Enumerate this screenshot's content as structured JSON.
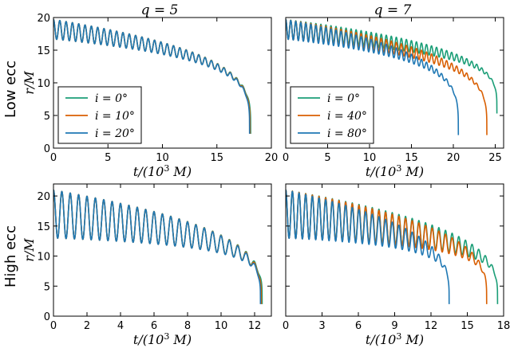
{
  "column_titles": [
    "q = 5",
    "q = 7"
  ],
  "row_labels": [
    "Low ecc",
    "High ecc"
  ],
  "colors": {
    "green": "#1b9e77",
    "orange": "#d95f02",
    "blue": "#1f78b4"
  },
  "chart_data": [
    {
      "type": "line",
      "title": "q = 5",
      "row_label": "Low ecc",
      "xlabel": "t/(10^3 M)",
      "ylabel": "r/M",
      "xlim": [
        0,
        20
      ],
      "ylim": [
        0,
        20
      ],
      "xticks": [
        0,
        5,
        10,
        15,
        20
      ],
      "yticks": [
        0,
        5,
        10,
        15,
        20
      ],
      "show_yticklabels": true,
      "show_xlabel": true,
      "show_ylabel": true,
      "legend": "lower-left",
      "series": [
        {
          "name": "i = 0°",
          "color": "#1b9e77",
          "r0": 18.2,
          "amp": 1.5,
          "t_merge": 18.1,
          "r_end": 2.2,
          "period": 0.58
        },
        {
          "name": "i = 10°",
          "color": "#d95f02",
          "r0": 18.2,
          "amp": 1.5,
          "t_merge": 18.05,
          "r_end": 2.2,
          "period": 0.58
        },
        {
          "name": "i = 20°",
          "color": "#1f78b4",
          "r0": 18.2,
          "amp": 1.5,
          "t_merge": 18.0,
          "r_end": 2.2,
          "period": 0.58
        }
      ]
    },
    {
      "type": "line",
      "title": "q = 7",
      "row_label": "Low ecc",
      "xlabel": "t/(10^3 M)",
      "ylabel": "",
      "xlim": [
        0,
        26
      ],
      "ylim": [
        0,
        20
      ],
      "xticks": [
        0,
        5,
        10,
        15,
        20,
        25
      ],
      "yticks": [
        0,
        5,
        10,
        15,
        20
      ],
      "show_yticklabels": false,
      "show_xlabel": true,
      "show_ylabel": false,
      "legend": "lower-left",
      "series": [
        {
          "name": "i = 0°",
          "color": "#1b9e77",
          "r0": 18.2,
          "amp": 1.5,
          "t_merge": 25.2,
          "r_end": 5.3,
          "period": 0.6
        },
        {
          "name": "i = 40°",
          "color": "#d95f02",
          "r0": 18.2,
          "amp": 1.5,
          "t_merge": 24.0,
          "r_end": 2.0,
          "period": 0.6
        },
        {
          "name": "i = 80°",
          "color": "#1f78b4",
          "r0": 18.2,
          "amp": 1.5,
          "t_merge": 20.6,
          "r_end": 2.0,
          "period": 0.6
        }
      ]
    },
    {
      "type": "line",
      "title": "",
      "row_label": "High ecc",
      "xlabel": "t/(10^3 M)",
      "ylabel": "r/M",
      "xlim": [
        0,
        13
      ],
      "ylim": [
        0,
        22
      ],
      "xticks": [
        0,
        2,
        4,
        6,
        8,
        10,
        12
      ],
      "yticks": [
        0,
        5,
        10,
        15,
        20
      ],
      "show_yticklabels": true,
      "show_xlabel": true,
      "show_ylabel": true,
      "legend": "none",
      "series": [
        {
          "name": "i = 0°",
          "color": "#1b9e77",
          "r0": 17.0,
          "amp": 4.0,
          "t_merge": 12.45,
          "r_end": 2.0,
          "period": 0.5
        },
        {
          "name": "i = 10°",
          "color": "#d95f02",
          "r0": 17.0,
          "amp": 4.0,
          "t_merge": 12.4,
          "r_end": 2.0,
          "period": 0.5
        },
        {
          "name": "i = 20°",
          "color": "#1f78b4",
          "r0": 17.0,
          "amp": 4.0,
          "t_merge": 12.35,
          "r_end": 2.0,
          "period": 0.5
        }
      ]
    },
    {
      "type": "line",
      "title": "",
      "row_label": "High ecc",
      "xlabel": "t/(10^3 M)",
      "ylabel": "",
      "xlim": [
        0,
        18
      ],
      "ylim": [
        0,
        22
      ],
      "xticks": [
        0,
        3,
        6,
        9,
        12,
        15,
        18
      ],
      "yticks": [
        0,
        5,
        10,
        15,
        20
      ],
      "show_yticklabels": false,
      "show_xlabel": true,
      "show_ylabel": false,
      "legend": "none",
      "series": [
        {
          "name": "i = 0°",
          "color": "#1b9e77",
          "r0": 17.0,
          "amp": 4.0,
          "t_merge": 17.5,
          "r_end": 2.0,
          "period": 0.55
        },
        {
          "name": "i = 40°",
          "color": "#d95f02",
          "r0": 17.0,
          "amp": 4.0,
          "t_merge": 16.6,
          "r_end": 2.0,
          "period": 0.55
        },
        {
          "name": "i = 80°",
          "color": "#1f78b4",
          "r0": 17.0,
          "amp": 4.0,
          "t_merge": 13.5,
          "r_end": 2.0,
          "period": 0.55
        }
      ]
    }
  ]
}
